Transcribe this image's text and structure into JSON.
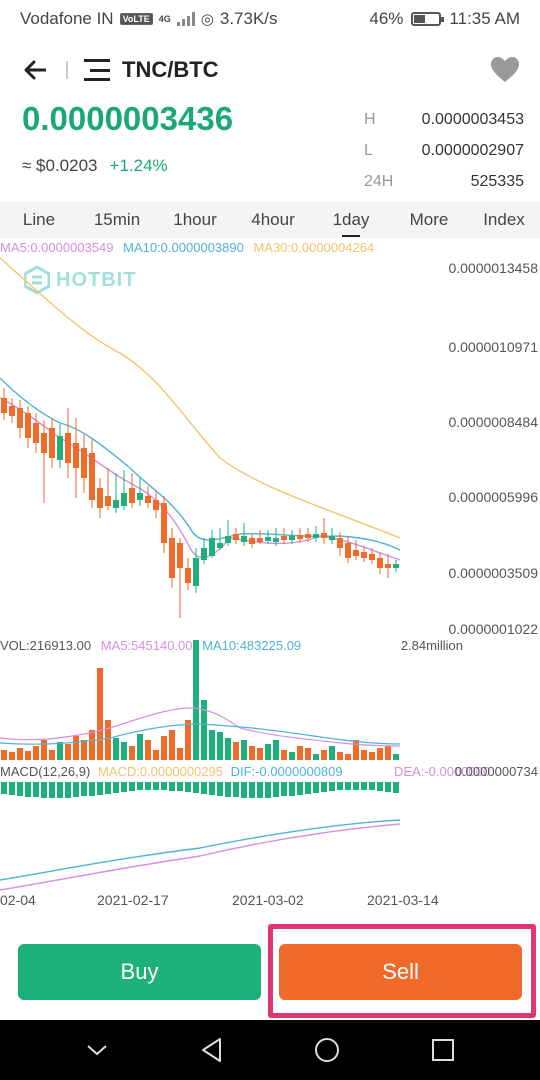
{
  "status_bar": {
    "carrier": "Vodafone IN",
    "volte": "VoLTE",
    "network": "4G",
    "speed": "3.73K/s",
    "battery_percent": "46%",
    "battery_level": 0.46,
    "time": "11:35 AM"
  },
  "header": {
    "pair": "TNC/BTC"
  },
  "ticker": {
    "last_price": "0.0000003436",
    "fiat_price": "≈ $0.0203",
    "change": "+1.24%",
    "high_label": "H",
    "high_value": "0.0000003453",
    "low_label": "L",
    "low_value": "0.0000002907",
    "volume_label": "24H",
    "volume_value": "525335"
  },
  "tabs": [
    {
      "label": "Line"
    },
    {
      "label": "15min"
    },
    {
      "label": "1hour"
    },
    {
      "label": "4hour"
    },
    {
      "label": "1day",
      "active": true
    },
    {
      "label": "More"
    },
    {
      "label": "Index"
    }
  ],
  "watermark": "HOTBIT",
  "ma_legend": {
    "ma5": "MA5:0.0000003549",
    "ma10": "MA10:0.0000003890",
    "ma30": "MA30:0.0000004264"
  },
  "price_axis": [
    "0.0000013458",
    "0.0000010971",
    "0.0000008484",
    "0.0000005996",
    "0.0000003509",
    "0.0000001022"
  ],
  "vol_legend": {
    "vol": "VOL:216913.00",
    "ma5": "MA5:545140.00",
    "ma10": "MA10:483225.09",
    "max": "2.84million"
  },
  "macd_legend": {
    "title": "MACD(12,26,9)",
    "macd": "MACD:0.0000000295",
    "dif": "DIF:-0.0000000809",
    "dea": "DEA:-0.0000000",
    "axis": "0.0000000734"
  },
  "dates": [
    "02-04",
    "2021-02-17",
    "2021-03-02",
    "2021-03-14"
  ],
  "buttons": {
    "buy": "Buy",
    "sell": "Sell"
  },
  "colors": {
    "up": "#1db07a",
    "down": "#f06a2a",
    "ma5": "#d48fe0",
    "ma10": "#4fb3d8",
    "ma30": "#f2c46b",
    "highlight": "#e03474"
  }
}
